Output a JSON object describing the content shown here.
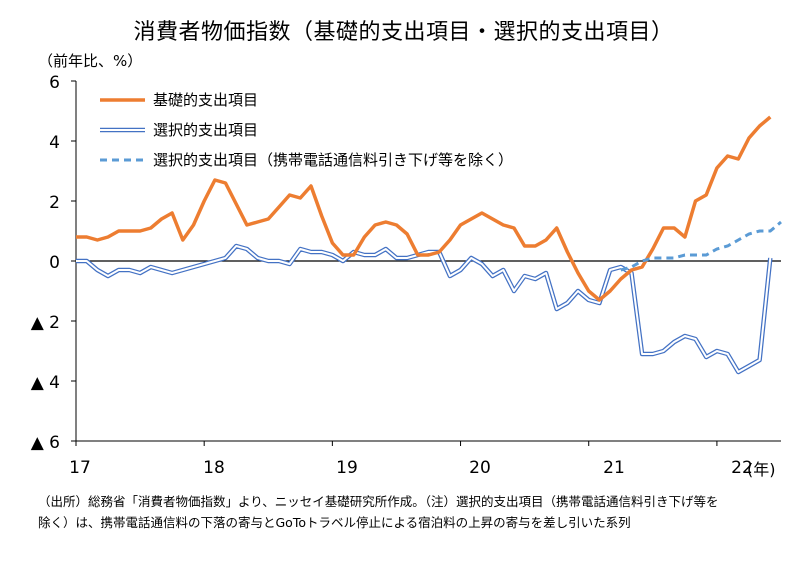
{
  "title": "消費者物価指数（基礎的支出項目・選択的支出項目）",
  "y_unit": "（前年比、%）",
  "x_unit": "(年)",
  "y_tick_labels": [
    "6",
    "4",
    "2",
    "0",
    "▲ 2",
    "▲ 4",
    "▲ 6"
  ],
  "x_tick_labels": [
    "17",
    "18",
    "19",
    "20",
    "21",
    "22"
  ],
  "note_line1": "（出所）総務省「消費者物価指数」より、ニッセイ基礎研究所作成。（注）選択的支出項目（携帯電話通信料引き下げ等を",
  "note_line2": "除く）は、携帯電話通信料の下落の寄与とGoToトラベル停止による宿泊料の上昇の寄与を差し引いた系列",
  "colors": {
    "basic": "#ED7D31",
    "selective": "#4472C4",
    "selective_ex": "#5B9BD5",
    "axis": "#000000"
  },
  "chart_data": {
    "type": "line",
    "ylim": [
      -6,
      6
    ],
    "x_start": "2017-01",
    "x_frequency": "monthly",
    "grid": false,
    "legend": "top-left",
    "series": [
      {
        "name": "基礎的支出項目",
        "style": "solid-thick",
        "values": [
          0.8,
          0.8,
          0.7,
          0.8,
          1.0,
          1.0,
          1.0,
          1.1,
          1.4,
          1.6,
          0.7,
          1.2,
          2.0,
          2.7,
          2.6,
          1.9,
          1.2,
          1.3,
          1.4,
          1.8,
          2.2,
          2.1,
          2.5,
          1.5,
          0.6,
          0.2,
          0.2,
          0.8,
          1.2,
          1.3,
          1.2,
          0.9,
          0.2,
          0.2,
          0.3,
          0.7,
          1.2,
          1.4,
          1.6,
          1.4,
          1.2,
          1.1,
          0.5,
          0.5,
          0.7,
          1.1,
          0.3,
          -0.4,
          -1.0,
          -1.3,
          -1.0,
          -0.6,
          -0.3,
          -0.2,
          0.4,
          1.1,
          1.1,
          0.8,
          2.0,
          2.2,
          3.1,
          3.5,
          3.4,
          4.1,
          4.5,
          4.8
        ]
      },
      {
        "name": "選択的支出項目",
        "style": "double",
        "values": [
          0.0,
          0.0,
          -0.3,
          -0.5,
          -0.3,
          -0.3,
          -0.4,
          -0.2,
          -0.3,
          -0.4,
          -0.3,
          -0.2,
          -0.1,
          0.0,
          0.1,
          0.5,
          0.4,
          0.1,
          0.0,
          0.0,
          -0.1,
          0.4,
          0.3,
          0.3,
          0.2,
          0.0,
          0.3,
          0.2,
          0.2,
          0.4,
          0.1,
          0.1,
          0.2,
          0.3,
          0.3,
          -0.5,
          -0.3,
          0.1,
          -0.1,
          -0.5,
          -0.3,
          -1.0,
          -0.5,
          -0.6,
          -0.4,
          -1.6,
          -1.4,
          -1.0,
          -1.3,
          -1.4,
          -0.3,
          -0.2,
          -0.4,
          -3.1,
          -3.1,
          -3.0,
          -2.7,
          -2.5,
          -2.6,
          -3.2,
          -3.0,
          -3.1,
          -3.7,
          -3.5,
          -3.3,
          0.1
        ]
      },
      {
        "name": "選択的支出項目（携帯電話通信料引き下げ等を除く）",
        "style": "dashed",
        "x_offset": 51,
        "values": [
          -0.3,
          -0.2,
          0.0,
          0.1,
          0.1,
          0.1,
          0.2,
          0.2,
          0.2,
          0.4,
          0.5,
          0.7,
          0.9,
          1.0,
          1.0,
          1.3
        ]
      }
    ]
  }
}
